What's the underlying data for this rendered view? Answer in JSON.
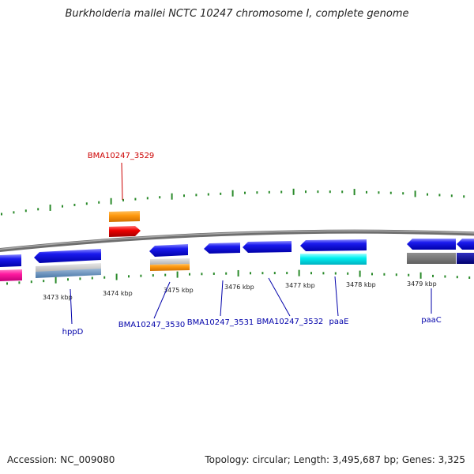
{
  "title": "Burkholderia mallei NCTC 10247 chromosome I, complete genome",
  "footer": {
    "accession": "Accession: NC_009080",
    "summary": "Topology: circular; Length: 3,495,687 bp; Genes: 3,325"
  },
  "scale_labels": [
    "3473 kbp",
    "3474 kbp",
    "3475 kbp",
    "3476 kbp",
    "3477 kbp",
    "3478 kbp",
    "3479 kbp"
  ],
  "gene_labels": [
    {
      "text": "BMA10247_3529",
      "color": "#cc0000"
    },
    {
      "text": "hppD",
      "color": "#0000aa"
    },
    {
      "text": "BMA10247_3530",
      "color": "#0000aa"
    },
    {
      "text": "BMA10247_3531",
      "color": "#0000aa"
    },
    {
      "text": "BMA10247_3532",
      "color": "#0000aa"
    },
    {
      "text": "paaE",
      "color": "#0000aa"
    },
    {
      "text": "paaC",
      "color": "#0000aa"
    }
  ],
  "colors": {
    "backbone": "#7a7a7a",
    "tick": "#2a8a2a",
    "cds": "#1a1ae6",
    "label_blue": "#0000aa",
    "label_red": "#cc0000"
  }
}
